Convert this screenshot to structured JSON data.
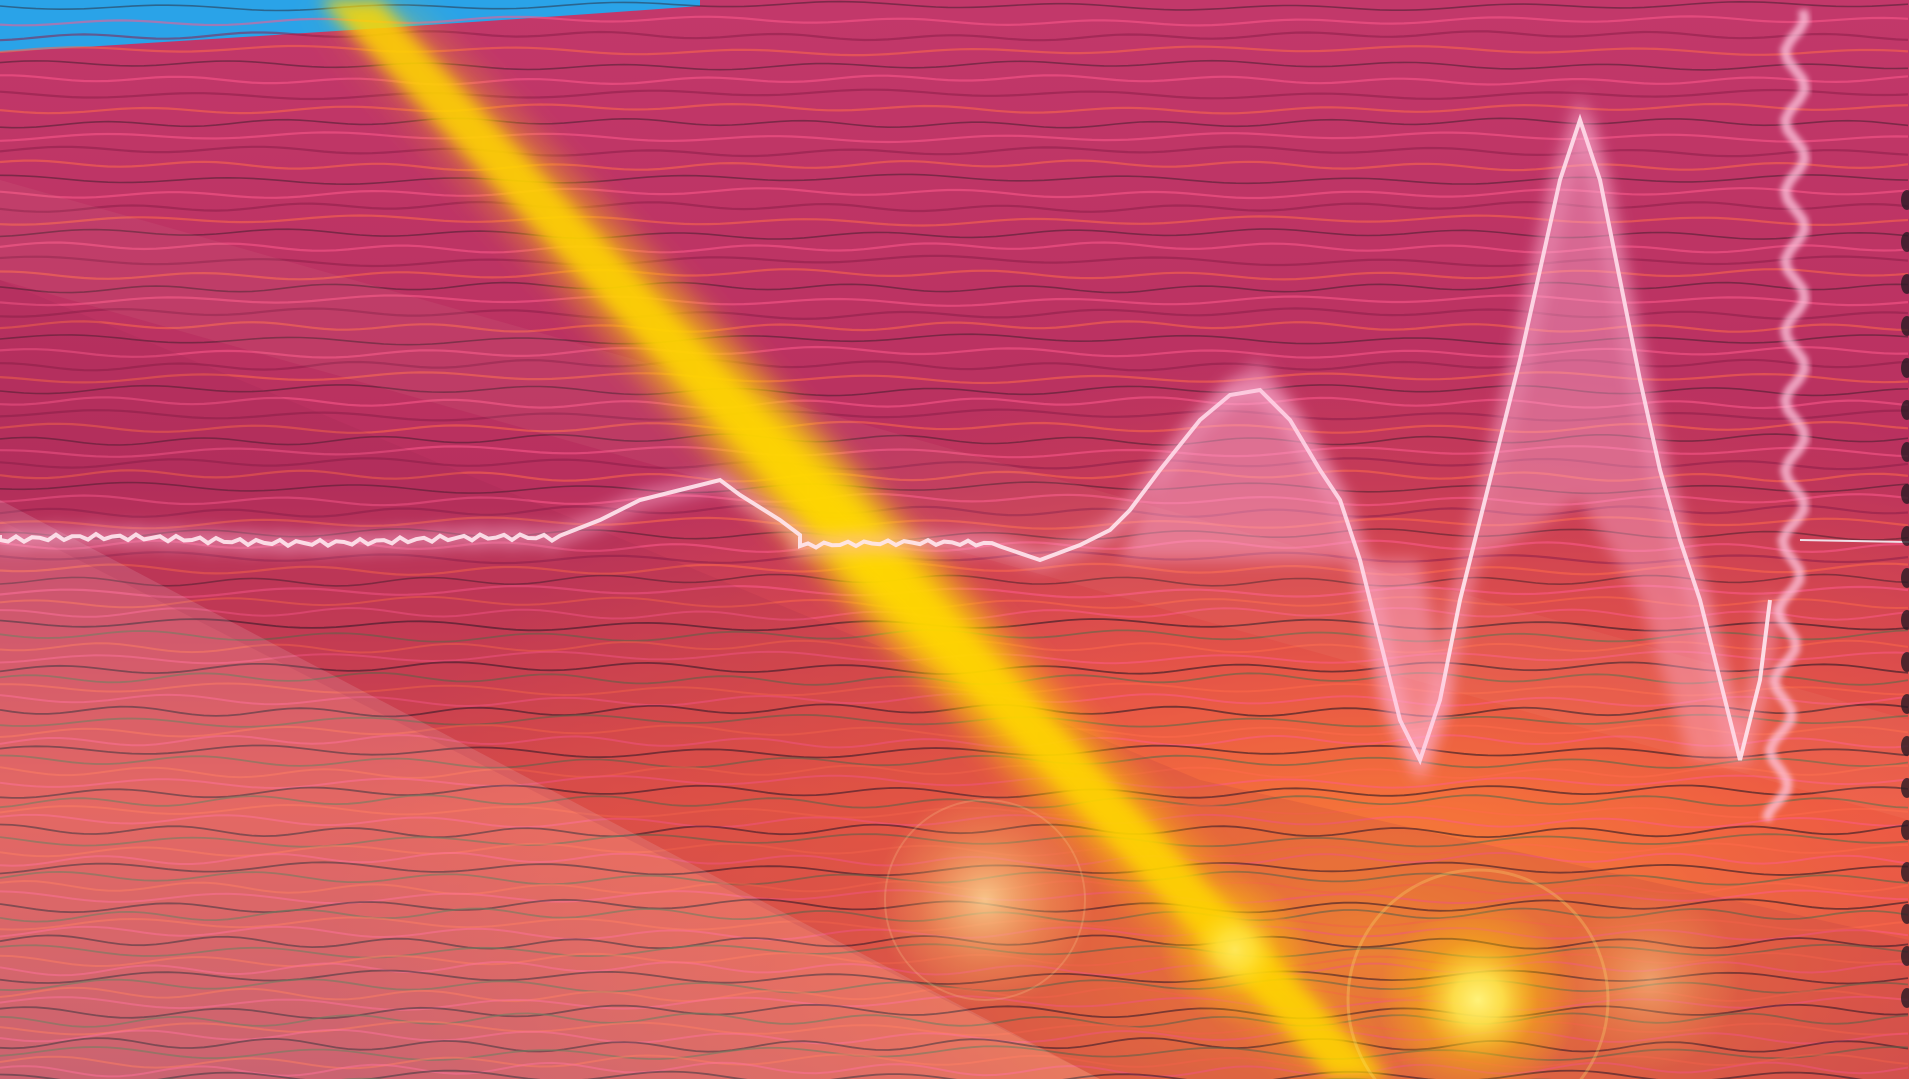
{
  "image": {
    "title": "",
    "caption": "",
    "style": "abstract wavy-line digital art with a diagonal yellow light beam and a pulse-like waveform",
    "colors": {
      "base_magenta": "#c2386a",
      "deep_crimson": "#8a1f48",
      "hot_pink": "#ff5a8c",
      "coral": "#ff6a4a",
      "orange": "#ff8a2a",
      "beam_yellow": "#ffd200",
      "flare_yellow": "#fff27a",
      "waveform_white": "#ffe8f0",
      "waveform_pink": "#ffb3d6",
      "sky_blue_corner": "#2aa3e8",
      "line_dark": "#2a1a24",
      "line_green_gray": "#5a6a4a"
    },
    "elements": [
      "background-wavy-lines",
      "translucent-diagonal-panels",
      "diagonal-light-beam",
      "waveform-line",
      "waveform-spikes",
      "lens-flare",
      "blue-corner-band"
    ]
  }
}
